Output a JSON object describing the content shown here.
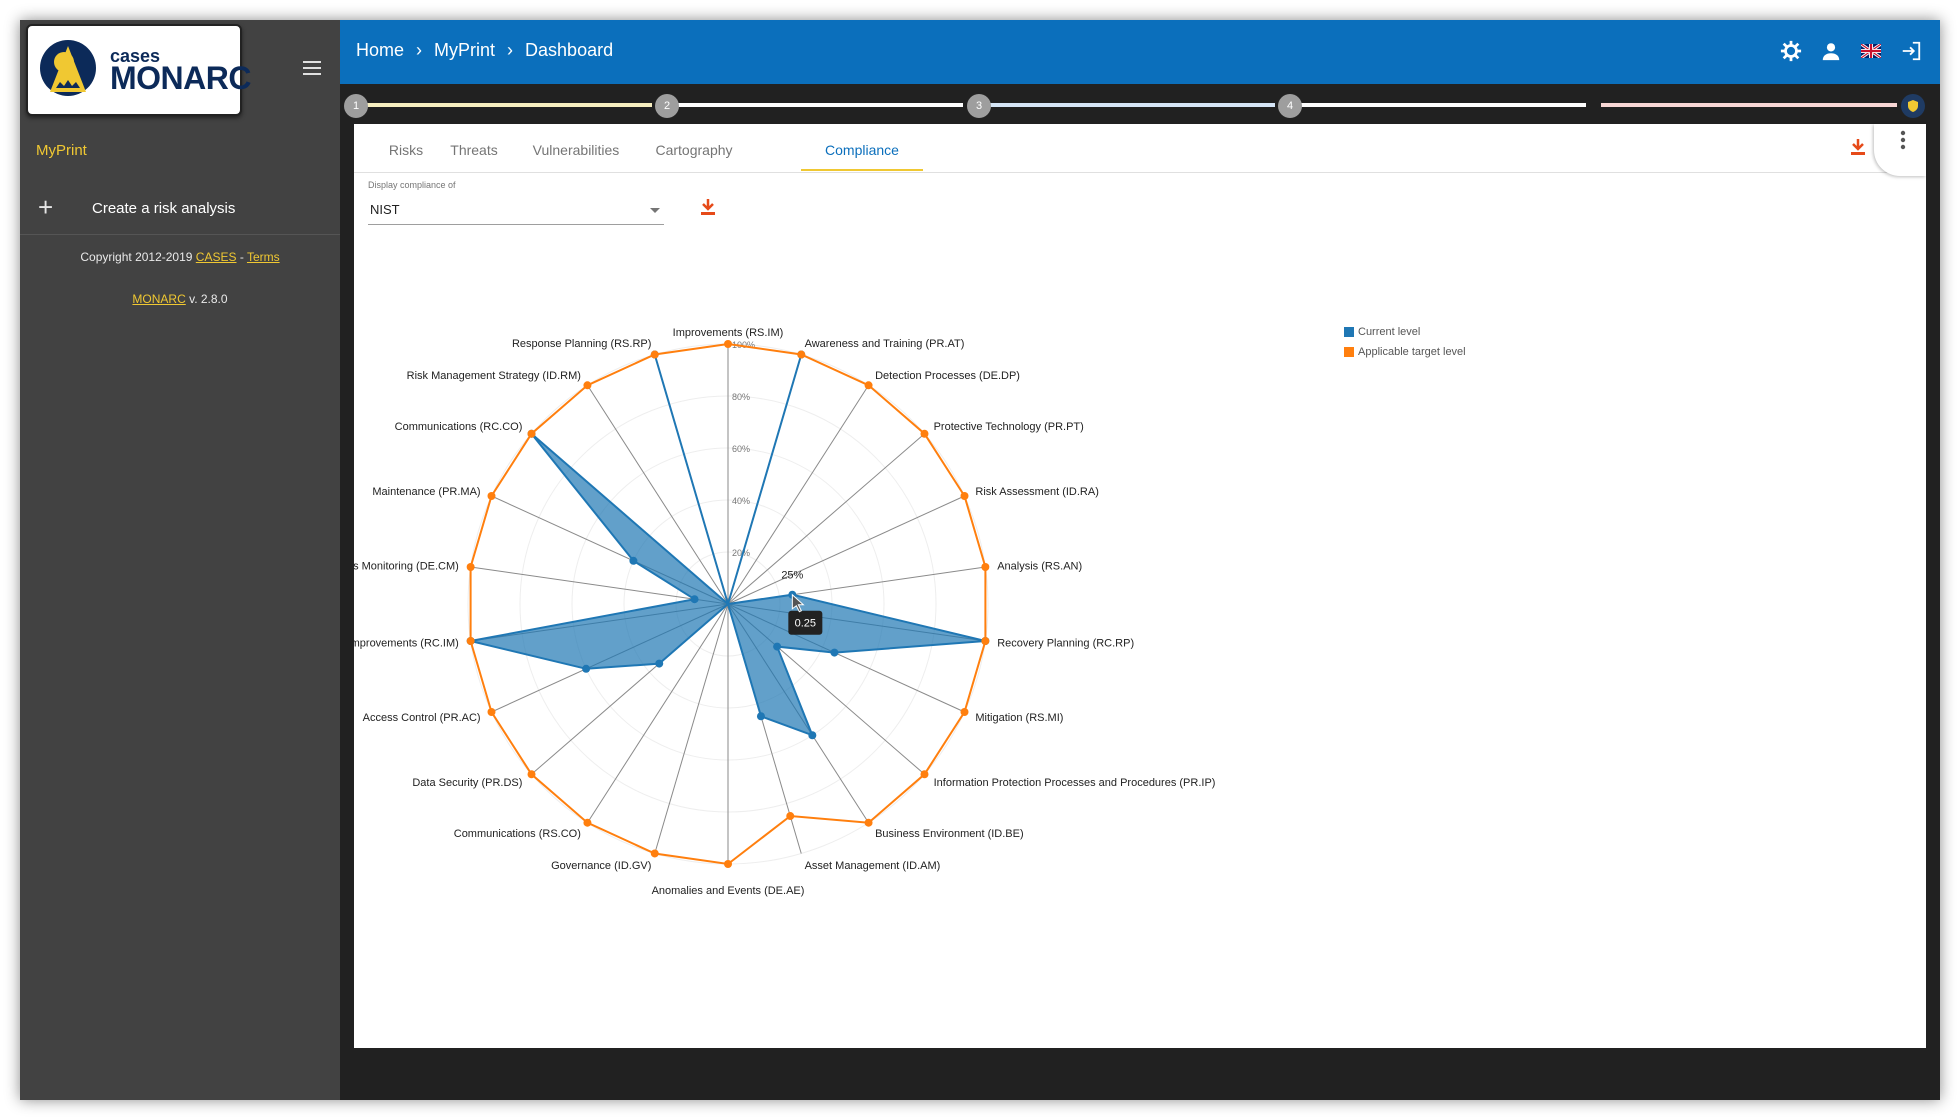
{
  "logo": {
    "top": "cases",
    "bottom": "MONARC"
  },
  "sidebar": {
    "project": "MyPrint",
    "create_label": "Create a risk analysis",
    "copyright_prefix": "Copyright 2012-2019 ",
    "copyright_link": "CASES",
    "copyright_sep": " - ",
    "terms_link": "Terms",
    "version_link": "MONARC",
    "version_text": " v. 2.8.0"
  },
  "breadcrumb": [
    "Home",
    "MyPrint",
    "Dashboard"
  ],
  "stepper": {
    "steps": [
      "1",
      "2",
      "3",
      "4"
    ],
    "colors": [
      "#f7efc0",
      "#ffffff",
      "#d6e6f7",
      "#ffffff",
      "#f8d7d5"
    ]
  },
  "tabs": [
    {
      "label": "Risks",
      "active": false
    },
    {
      "label": "Threats",
      "active": false
    },
    {
      "label": "Vulnerabilities",
      "active": false
    },
    {
      "label": "Cartography",
      "active": false
    },
    {
      "label": "Compliance",
      "active": true
    }
  ],
  "compliance_select": {
    "label": "Display compliance of",
    "value": "NIST"
  },
  "colors": {
    "current": "#1f77b4",
    "target": "#ff7f0e",
    "accent": "#0b6fbc",
    "download": "#e64a19"
  },
  "chart_data": {
    "type": "radar",
    "axis_ticks": [
      "20%",
      "40%",
      "60%",
      "80%",
      "100%"
    ],
    "axes": [
      "Improvements (RS.IM)",
      "Awareness and Training (PR.AT)",
      "Detection Processes (DE.DP)",
      "Protective Technology (PR.PT)",
      "Risk Assessment (ID.RA)",
      "Analysis (RS.AN)",
      "Recovery Planning (RC.RP)",
      "Mitigation (RS.MI)",
      "Information Protection Processes and Procedures (PR.IP)",
      "Business Environment (ID.BE)",
      "Asset Management (ID.AM)",
      "Anomalies and Events (DE.AE)",
      "Governance (ID.GV)",
      "Communications (RS.CO)",
      "Data Security (PR.DS)",
      "Access Control (PR.AC)",
      "Improvements (RC.IM)",
      "Security Continuous Monitoring (DE.CM)",
      "Maintenance (PR.MA)",
      "Communications (RC.CO)",
      "Risk Management Strategy (ID.RM)",
      "Response Planning (RS.RP)"
    ],
    "series": [
      {
        "name": "Current level",
        "values": [
          0,
          1,
          0,
          0,
          0,
          0.25,
          1,
          0.45,
          0.25,
          0.6,
          0.45,
          0,
          0,
          0,
          0.35,
          0.6,
          1,
          0.13,
          0.4,
          1,
          0,
          1
        ]
      },
      {
        "name": "Applicable target level",
        "values": [
          1,
          1,
          1,
          1,
          1,
          1,
          1,
          1,
          1,
          1,
          0.85,
          1,
          1,
          1,
          1,
          1,
          1,
          1,
          1,
          1,
          1,
          1
        ]
      }
    ],
    "tooltip": {
      "axis_value": "25%",
      "value": "0.25"
    }
  }
}
